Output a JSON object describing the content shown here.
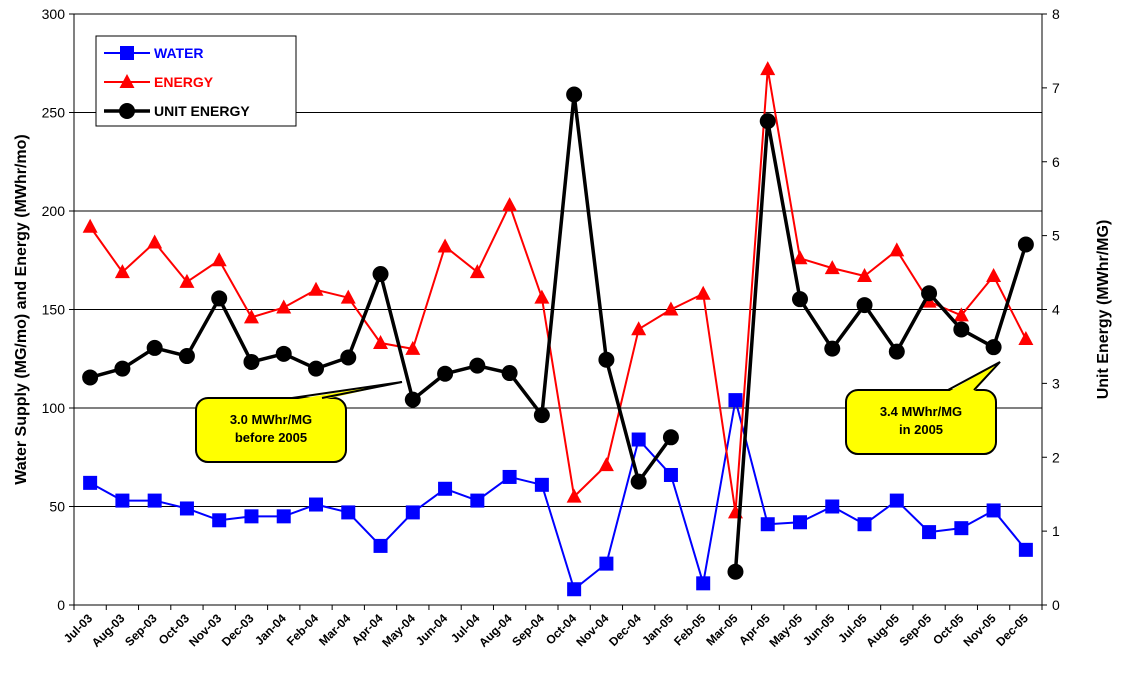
{
  "chart_data": {
    "type": "line",
    "categories": [
      "Jul-03",
      "Aug-03",
      "Sep-03",
      "Oct-03",
      "Nov-03",
      "Dec-03",
      "Jan-04",
      "Feb-04",
      "Mar-04",
      "Apr-04",
      "May-04",
      "Jun-04",
      "Jul-04",
      "Aug-04",
      "Sep-04",
      "Oct-04",
      "Nov-04",
      "Dec-04",
      "Jan-05",
      "Feb-05",
      "Mar-05",
      "Apr-05",
      "May-05",
      "Jun-05",
      "Jul-05",
      "Aug-05",
      "Sep-05",
      "Oct-05",
      "Nov-05",
      "Dec-05"
    ],
    "ylabel": "Water Supply (MG/mo) and Energy (MWhr/mo)",
    "y2label": "Unit Energy (MWhr/MG)",
    "ylim": [
      0,
      300
    ],
    "y2lim": [
      0,
      8
    ],
    "yticks": [
      0,
      50,
      100,
      150,
      200,
      250,
      300
    ],
    "y2ticks": [
      0,
      1,
      2,
      3,
      4,
      5,
      6,
      7,
      8
    ],
    "grid": true,
    "legend_position": "top-left",
    "series": [
      {
        "name": "WATER",
        "color": "#0000ff",
        "marker": "square",
        "axis": "left",
        "values": [
          62,
          53,
          53,
          49,
          43,
          45,
          45,
          51,
          47,
          30,
          47,
          59,
          53,
          65,
          61,
          8,
          21,
          84,
          66,
          11,
          104,
          41,
          42,
          50,
          41,
          53,
          37,
          39,
          48,
          28
        ]
      },
      {
        "name": "ENERGY",
        "color": "#ff0000",
        "marker": "triangle",
        "axis": "left",
        "values": [
          192,
          169,
          184,
          164,
          175,
          146,
          151,
          160,
          156,
          133,
          130,
          182,
          169,
          203,
          156,
          55,
          71,
          140,
          150,
          158,
          47,
          272,
          176,
          171,
          167,
          180,
          154,
          147,
          167,
          135
        ]
      },
      {
        "name": "UNIT ENERGY",
        "color": "#000000",
        "marker": "circle",
        "axis": "right",
        "values": [
          3.08,
          3.2,
          3.48,
          3.37,
          4.15,
          3.29,
          3.4,
          3.2,
          3.35,
          4.48,
          2.78,
          3.13,
          3.24,
          3.14,
          2.57,
          6.91,
          3.32,
          1.67,
          2.27,
          null,
          0.45,
          6.55,
          4.14,
          3.47,
          4.06,
          3.43,
          4.22,
          3.73,
          3.49,
          4.88
        ]
      }
    ],
    "annotations": [
      {
        "line1": "3.0 MWhr/MG",
        "line2": "before 2005"
      },
      {
        "line1": "3.4 MWhr/MG",
        "line2": "in 2005"
      }
    ]
  },
  "callout_color": "#ffff00"
}
